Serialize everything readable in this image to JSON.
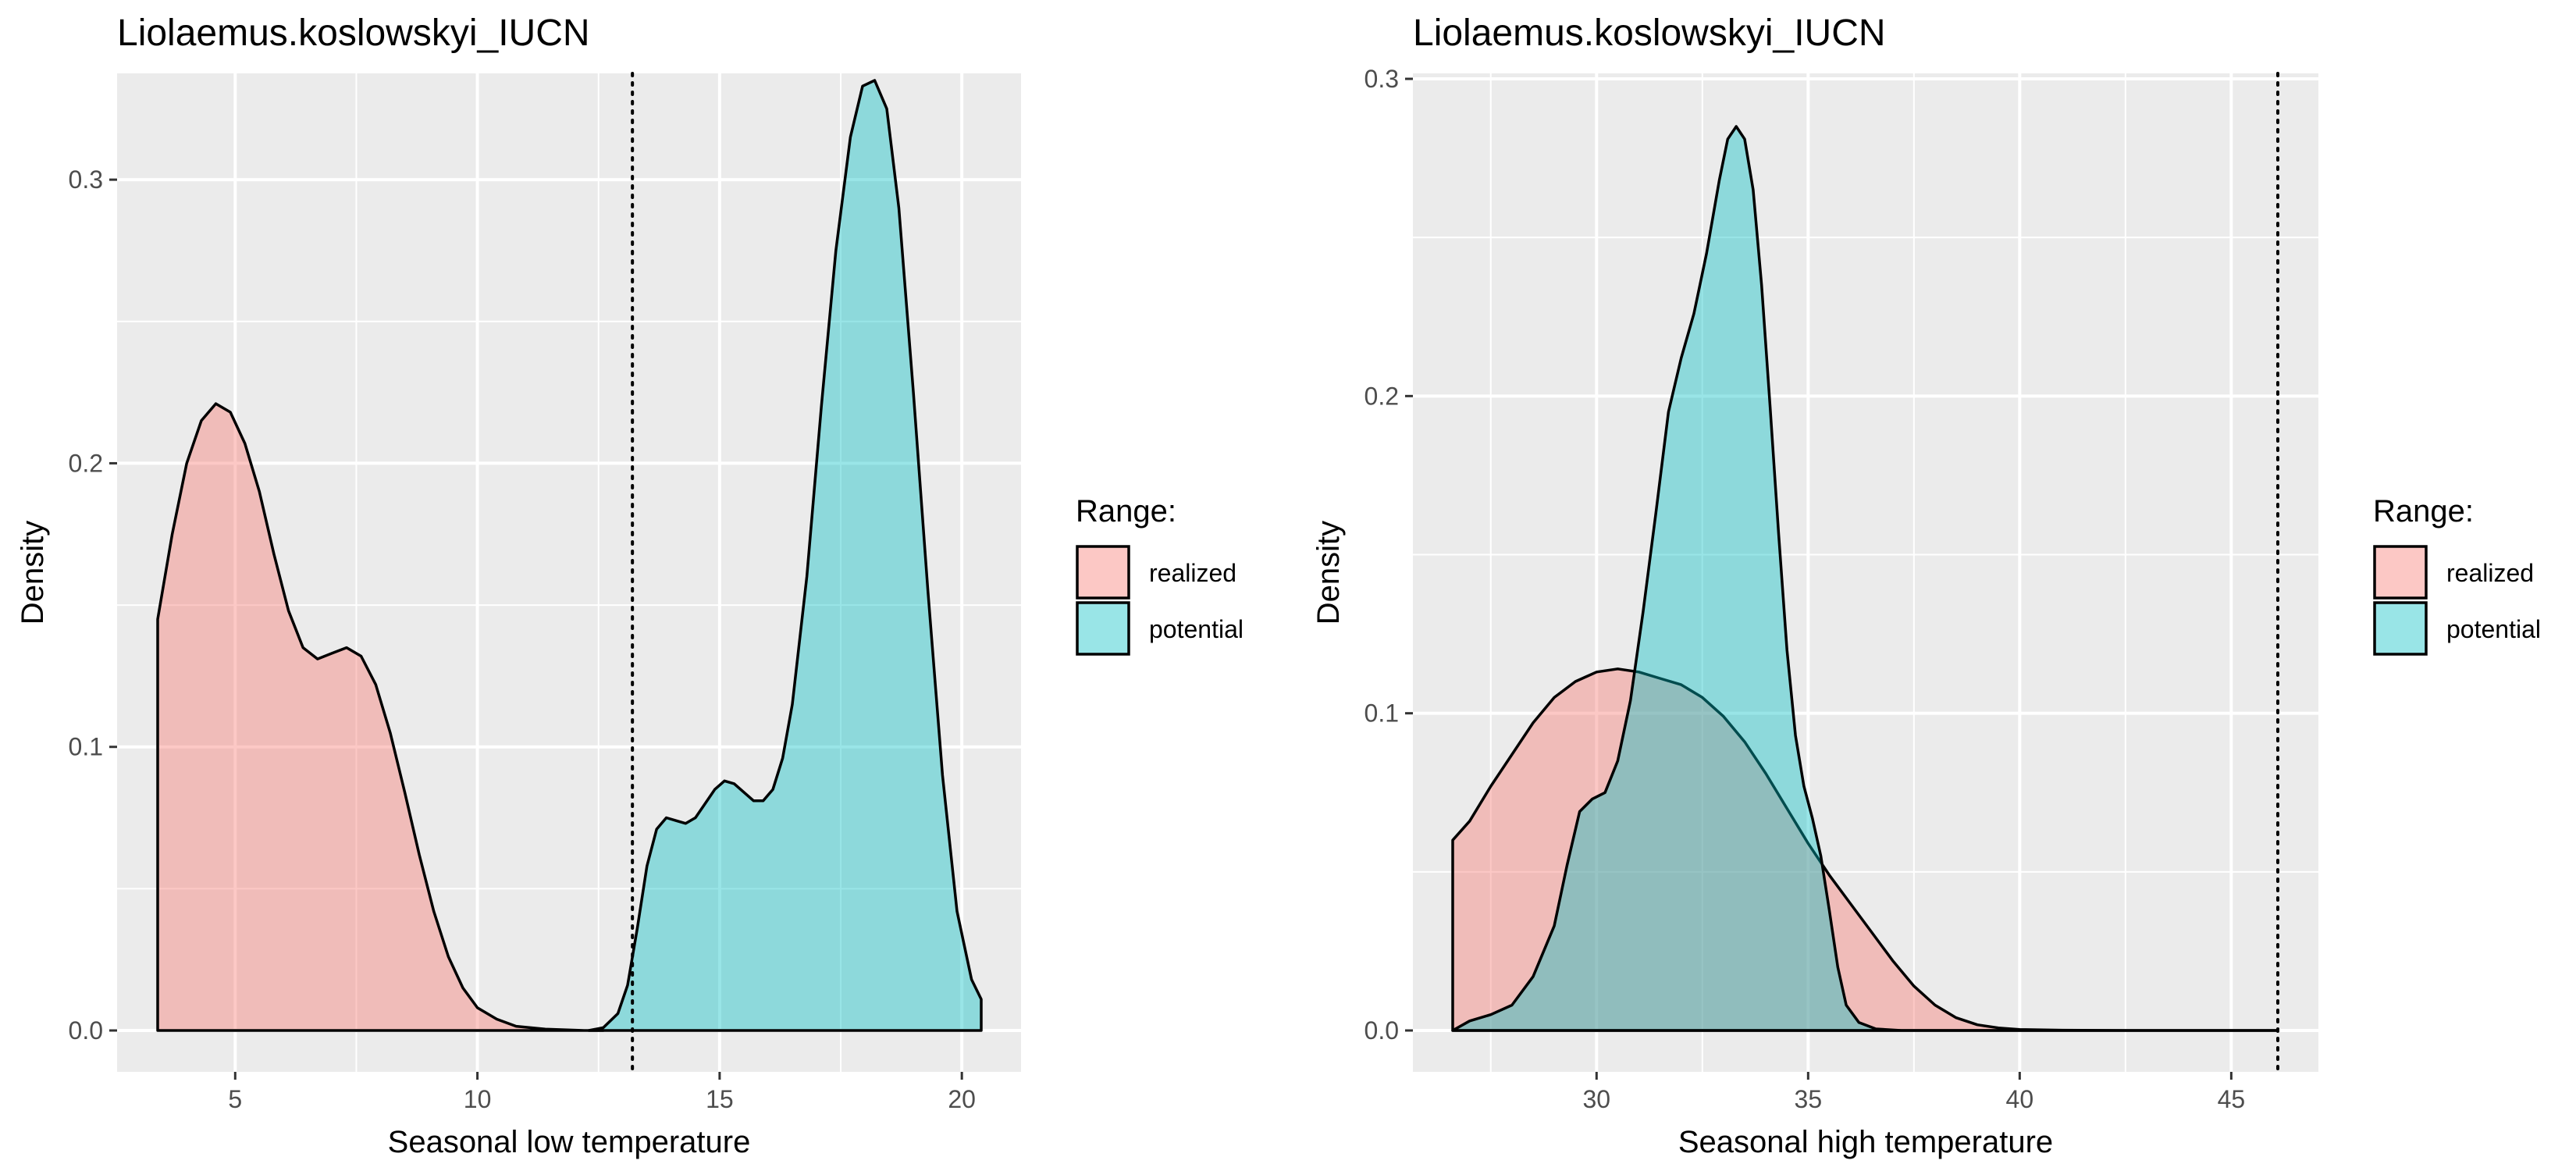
{
  "chart_data": [
    {
      "type": "area",
      "title": "Liolaemus.koslowskyi_IUCN",
      "xlabel": "Seasonal low temperature",
      "ylabel": "Density",
      "xlim": [
        3.4,
        20.4
      ],
      "ylim": [
        0,
        0.335
      ],
      "x_ticks": [
        5,
        10,
        15,
        20
      ],
      "y_ticks": [
        0.0,
        0.1,
        0.2,
        0.3
      ],
      "x_tick_labels": [
        "5",
        "10",
        "15",
        "20"
      ],
      "y_tick_labels": [
        "0.0",
        "0.1",
        "0.2",
        "0.3"
      ],
      "grid": true,
      "vline": 13.2,
      "legend": {
        "title": "Range:",
        "position": "right",
        "entries": [
          {
            "label": "realized",
            "color": "#F8766D"
          },
          {
            "label": "potential",
            "color": "#00BFC4"
          }
        ]
      },
      "series": [
        {
          "name": "realized",
          "color": "#F8766D",
          "points": [
            [
              3.4,
              0.145
            ],
            [
              3.7,
              0.175
            ],
            [
              4.0,
              0.2
            ],
            [
              4.3,
              0.215
            ],
            [
              4.6,
              0.221
            ],
            [
              4.9,
              0.218
            ],
            [
              5.2,
              0.207
            ],
            [
              5.5,
              0.19
            ],
            [
              5.8,
              0.168
            ],
            [
              6.1,
              0.148
            ],
            [
              6.4,
              0.135
            ],
            [
              6.7,
              0.131
            ],
            [
              7.0,
              0.133
            ],
            [
              7.3,
              0.135
            ],
            [
              7.6,
              0.132
            ],
            [
              7.9,
              0.122
            ],
            [
              8.2,
              0.105
            ],
            [
              8.5,
              0.084
            ],
            [
              8.8,
              0.062
            ],
            [
              9.1,
              0.042
            ],
            [
              9.4,
              0.026
            ],
            [
              9.7,
              0.015
            ],
            [
              10.0,
              0.008
            ],
            [
              10.4,
              0.004
            ],
            [
              10.8,
              0.0015
            ],
            [
              11.4,
              0.0005
            ],
            [
              12.2,
              0.0
            ],
            [
              12.6,
              0.0
            ]
          ]
        },
        {
          "name": "potential",
          "color": "#00BFC4",
          "points": [
            [
              12.3,
              0.0
            ],
            [
              12.6,
              0.001
            ],
            [
              12.9,
              0.006
            ],
            [
              13.1,
              0.016
            ],
            [
              13.3,
              0.036
            ],
            [
              13.5,
              0.058
            ],
            [
              13.7,
              0.071
            ],
            [
              13.9,
              0.075
            ],
            [
              14.1,
              0.074
            ],
            [
              14.3,
              0.073
            ],
            [
              14.5,
              0.075
            ],
            [
              14.7,
              0.08
            ],
            [
              14.9,
              0.085
            ],
            [
              15.1,
              0.088
            ],
            [
              15.3,
              0.087
            ],
            [
              15.5,
              0.084
            ],
            [
              15.7,
              0.081
            ],
            [
              15.9,
              0.081
            ],
            [
              16.1,
              0.085
            ],
            [
              16.3,
              0.096
            ],
            [
              16.5,
              0.115
            ],
            [
              16.8,
              0.16
            ],
            [
              17.1,
              0.22
            ],
            [
              17.4,
              0.275
            ],
            [
              17.7,
              0.315
            ],
            [
              17.95,
              0.333
            ],
            [
              18.2,
              0.335
            ],
            [
              18.45,
              0.325
            ],
            [
              18.7,
              0.29
            ],
            [
              19.0,
              0.225
            ],
            [
              19.3,
              0.155
            ],
            [
              19.6,
              0.09
            ],
            [
              19.9,
              0.042
            ],
            [
              20.2,
              0.018
            ],
            [
              20.4,
              0.011
            ],
            [
              20.4,
              0.0
            ]
          ]
        }
      ]
    },
    {
      "type": "area",
      "title": "Liolaemus.koslowskyi_IUCN",
      "xlabel": "Seasonal high temperature",
      "ylabel": "Density",
      "xlim": [
        26.6,
        46.1
      ],
      "ylim": [
        0,
        0.3
      ],
      "x_ticks": [
        30,
        35,
        40,
        45
      ],
      "y_ticks": [
        0.0,
        0.1,
        0.2,
        0.3
      ],
      "x_tick_labels": [
        "30",
        "35",
        "40",
        "45"
      ],
      "y_tick_labels": [
        "0.0",
        "0.1",
        "0.2",
        "0.3"
      ],
      "grid": true,
      "vline": 46.1,
      "legend": {
        "title": "Range:",
        "position": "right",
        "entries": [
          {
            "label": "realized",
            "color": "#F8766D"
          },
          {
            "label": "potential",
            "color": "#00BFC4"
          }
        ]
      },
      "series": [
        {
          "name": "realized",
          "color": "#F8766D",
          "points": [
            [
              26.6,
              0.06
            ],
            [
              27.0,
              0.066
            ],
            [
              27.5,
              0.077
            ],
            [
              28.0,
              0.087
            ],
            [
              28.5,
              0.097
            ],
            [
              29.0,
              0.105
            ],
            [
              29.5,
              0.11
            ],
            [
              30.0,
              0.113
            ],
            [
              30.5,
              0.114
            ],
            [
              31.0,
              0.113
            ],
            [
              31.5,
              0.111
            ],
            [
              32.0,
              0.109
            ],
            [
              32.5,
              0.105
            ],
            [
              33.0,
              0.099
            ],
            [
              33.5,
              0.091
            ],
            [
              34.0,
              0.081
            ],
            [
              34.5,
              0.07
            ],
            [
              35.0,
              0.059
            ],
            [
              35.5,
              0.049
            ],
            [
              36.0,
              0.04
            ],
            [
              36.5,
              0.031
            ],
            [
              37.0,
              0.022
            ],
            [
              37.5,
              0.014
            ],
            [
              38.0,
              0.008
            ],
            [
              38.5,
              0.004
            ],
            [
              39.0,
              0.0018
            ],
            [
              39.5,
              0.0008
            ],
            [
              40.0,
              0.0003
            ],
            [
              41.0,
              0.0001
            ],
            [
              42.5,
              0.0
            ],
            [
              44.0,
              0.0
            ],
            [
              46.1,
              0.0
            ]
          ]
        },
        {
          "name": "potential",
          "color": "#00BFC4",
          "points": [
            [
              26.6,
              0.0
            ],
            [
              27.0,
              0.003
            ],
            [
              27.5,
              0.005
            ],
            [
              28.0,
              0.008
            ],
            [
              28.5,
              0.017
            ],
            [
              29.0,
              0.033
            ],
            [
              29.3,
              0.052
            ],
            [
              29.6,
              0.069
            ],
            [
              29.9,
              0.073
            ],
            [
              30.2,
              0.075
            ],
            [
              30.5,
              0.085
            ],
            [
              30.8,
              0.104
            ],
            [
              31.1,
              0.132
            ],
            [
              31.4,
              0.163
            ],
            [
              31.7,
              0.195
            ],
            [
              32.0,
              0.212
            ],
            [
              32.3,
              0.226
            ],
            [
              32.6,
              0.245
            ],
            [
              32.9,
              0.268
            ],
            [
              33.1,
              0.281
            ],
            [
              33.3,
              0.285
            ],
            [
              33.5,
              0.281
            ],
            [
              33.7,
              0.265
            ],
            [
              33.9,
              0.235
            ],
            [
              34.1,
              0.197
            ],
            [
              34.3,
              0.157
            ],
            [
              34.5,
              0.12
            ],
            [
              34.7,
              0.093
            ],
            [
              34.9,
              0.077
            ],
            [
              35.1,
              0.067
            ],
            [
              35.3,
              0.055
            ],
            [
              35.5,
              0.038
            ],
            [
              35.7,
              0.02
            ],
            [
              35.9,
              0.008
            ],
            [
              36.2,
              0.0025
            ],
            [
              36.6,
              0.0005
            ],
            [
              37.2,
              0.0
            ],
            [
              46.1,
              0.0
            ]
          ]
        }
      ]
    }
  ]
}
